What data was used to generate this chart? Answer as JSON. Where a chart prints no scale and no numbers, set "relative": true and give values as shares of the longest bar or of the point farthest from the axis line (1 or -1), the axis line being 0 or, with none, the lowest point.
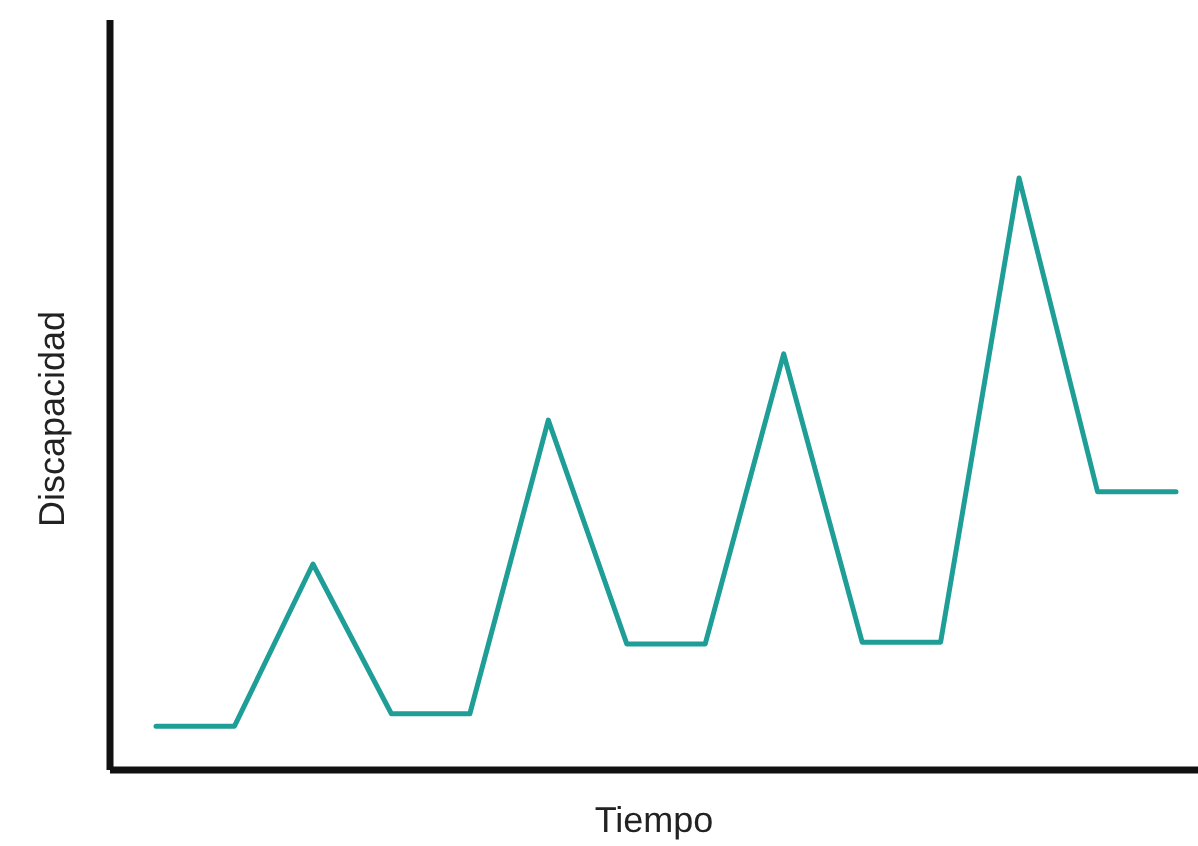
{
  "chart_data": {
    "type": "line",
    "xlabel": "Tiempo",
    "ylabel": "Discapacidad",
    "relative": true,
    "marker": "none",
    "line_style": "solid",
    "categories": [
      null,
      null,
      null,
      null,
      null,
      null,
      null,
      null,
      null,
      null,
      null,
      null,
      null,
      null
    ],
    "series": [
      {
        "color": "#1e9e96",
        "values": [
          0.074,
          0.074,
          0.348,
          0.095,
          0.095,
          0.591,
          0.213,
          0.213,
          0.703,
          0.216,
          0.216,
          1,
          0.47,
          0.47
        ]
      }
    ]
  }
}
